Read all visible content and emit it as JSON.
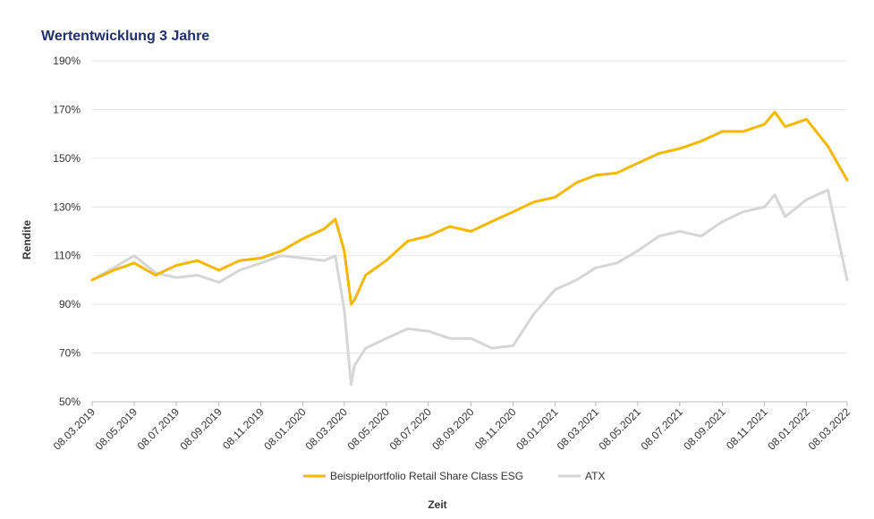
{
  "chart_data": {
    "type": "line",
    "title": "Wertentwicklung 3 Jahre",
    "xlabel": "Zeit",
    "ylabel": "Rendite",
    "y_unit": "%",
    "ylim": [
      50,
      190
    ],
    "y_ticks": [
      50,
      70,
      90,
      110,
      130,
      150,
      170,
      190
    ],
    "grid": true,
    "legend": "bottom",
    "x_tick_labels": [
      "08.03.2019",
      "08.05.2019",
      "08.07.2019",
      "08.09.2019",
      "08.11.2019",
      "08.01.2020",
      "08.03.2020",
      "08.05.2020",
      "08.07.2020",
      "08.09.2020",
      "08.11.2020",
      "08.01.2021",
      "08.03.2021",
      "08.05.2021",
      "08.07.2021",
      "08.09.2021",
      "08.11.2021",
      "08.01.2022",
      "08.03.2022"
    ],
    "x": [
      "08.03.2019",
      "08.04.2019",
      "08.05.2019",
      "08.06.2019",
      "08.07.2019",
      "08.08.2019",
      "08.09.2019",
      "08.10.2019",
      "08.11.2019",
      "08.12.2019",
      "08.01.2020",
      "08.02.2020",
      "24.02.2020",
      "08.03.2020",
      "18.03.2020",
      "23.03.2020",
      "08.04.2020",
      "08.05.2020",
      "08.06.2020",
      "08.07.2020",
      "08.08.2020",
      "08.09.2020",
      "08.10.2020",
      "08.11.2020",
      "08.12.2020",
      "08.01.2021",
      "08.02.2021",
      "08.03.2021",
      "08.04.2021",
      "08.05.2021",
      "08.06.2021",
      "08.07.2021",
      "08.08.2021",
      "08.09.2021",
      "08.10.2021",
      "08.11.2021",
      "23.11.2021",
      "08.12.2021",
      "08.01.2022",
      "08.02.2022",
      "08.03.2022"
    ],
    "series": [
      {
        "name": "Beispielportfolio Retail Share Class ESG",
        "color": "#f5b800",
        "values": [
          100,
          104,
          107,
          102,
          106,
          108,
          104,
          108,
          109,
          112,
          117,
          121,
          125,
          112,
          90,
          92,
          102,
          108,
          116,
          118,
          122,
          120,
          124,
          128,
          132,
          134,
          140,
          143,
          144,
          148,
          152,
          154,
          157,
          161,
          161,
          164,
          169,
          163,
          166,
          155,
          141
        ]
      },
      {
        "name": "ATX",
        "color": "#d6d6d6",
        "values": [
          100,
          105,
          110,
          103,
          101,
          102,
          99,
          104,
          107,
          110,
          109,
          108,
          110,
          88,
          57,
          65,
          72,
          76,
          80,
          79,
          76,
          76,
          72,
          73,
          86,
          96,
          100,
          105,
          107,
          112,
          118,
          120,
          118,
          124,
          128,
          130,
          135,
          126,
          133,
          137,
          100
        ]
      }
    ]
  }
}
